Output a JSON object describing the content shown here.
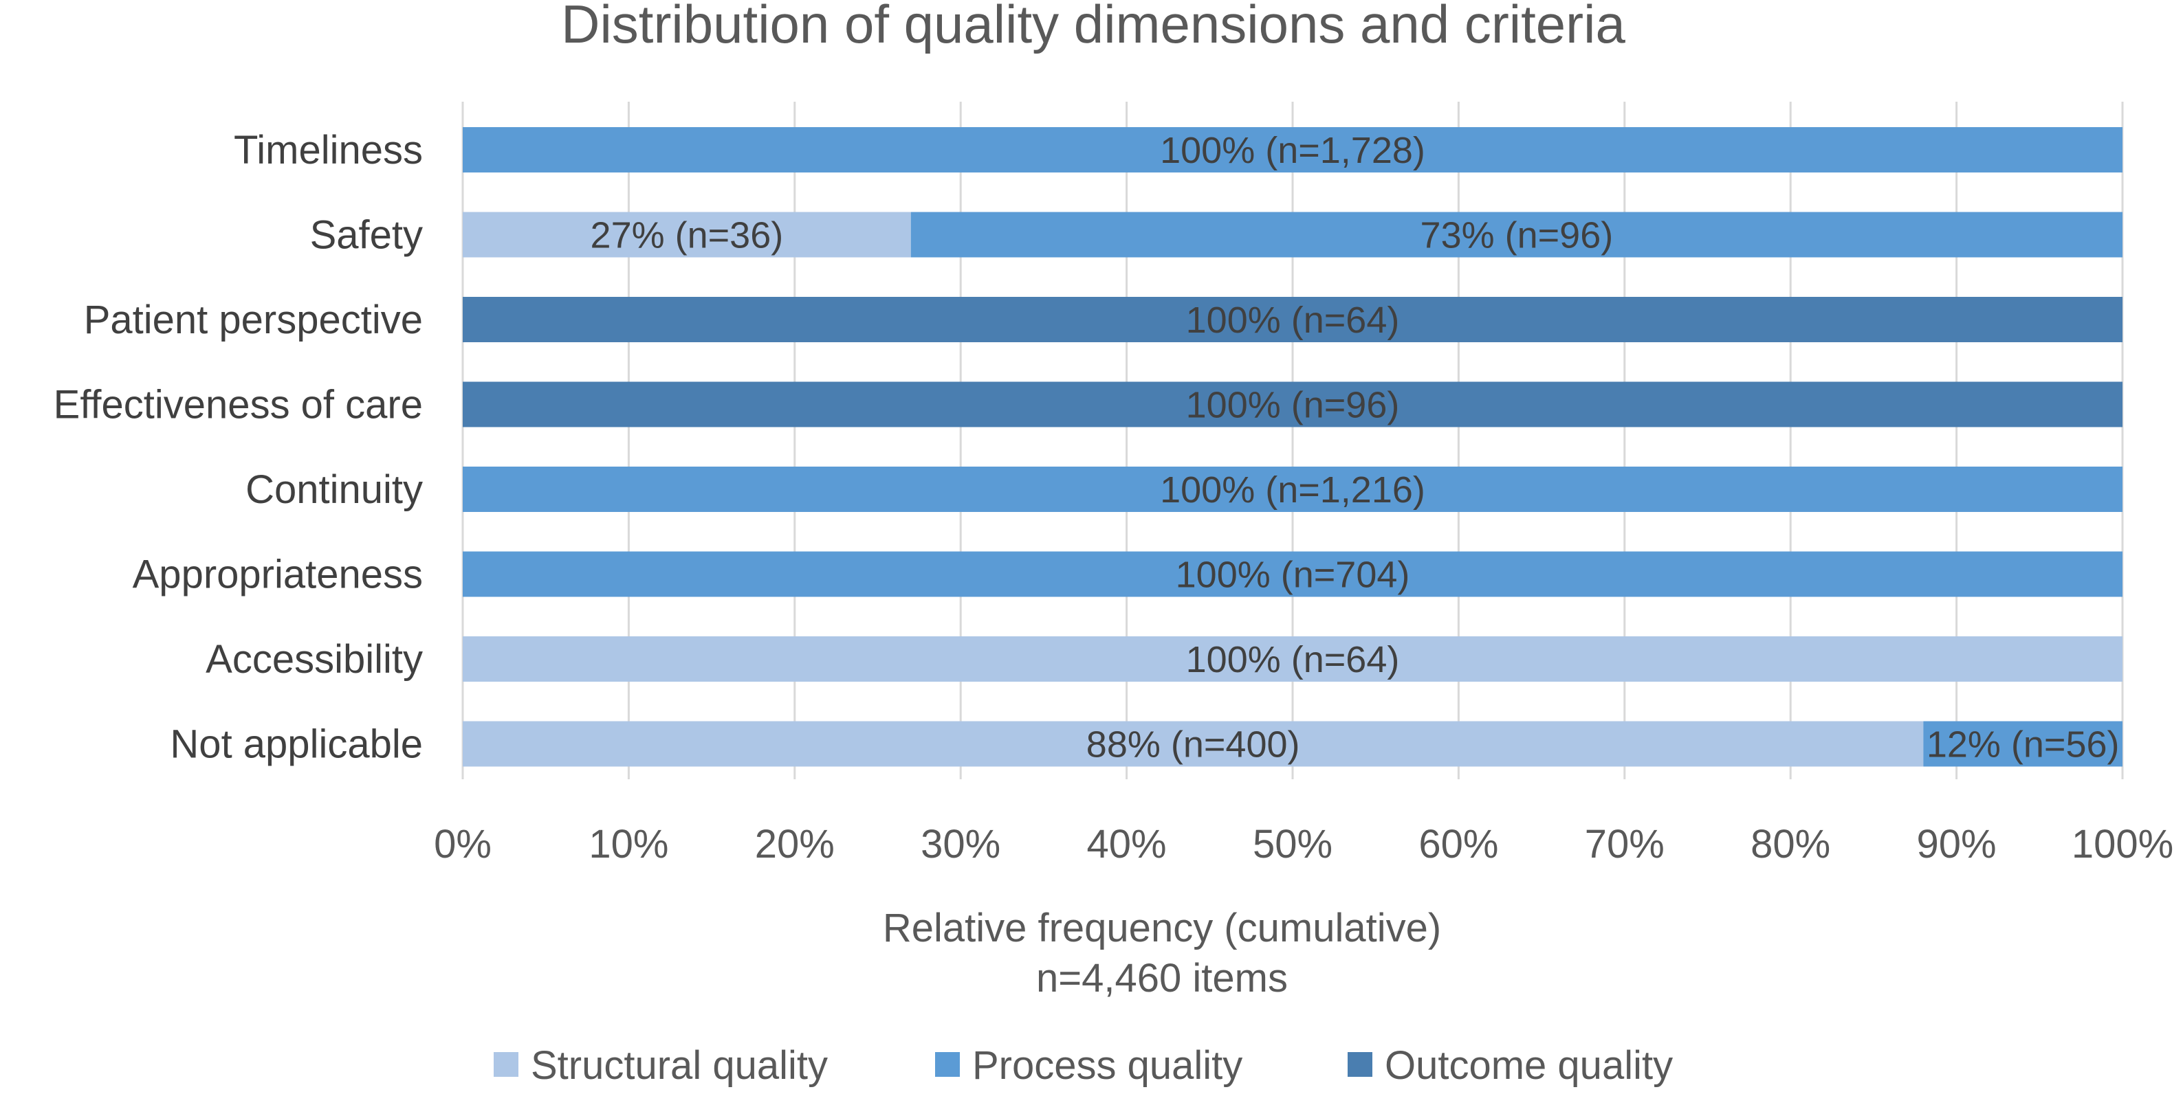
{
  "chart_data": {
    "type": "bar",
    "orientation": "horizontal",
    "stacked": "percent",
    "title": "Distribution of quality dimensions and criteria",
    "xlabel": "Relative frequency (cumulative)",
    "xlabel_sub": "n=4,460 items",
    "ylabel": "",
    "xlim": [
      0,
      100
    ],
    "x_ticks": [
      "0%",
      "10%",
      "20%",
      "30%",
      "40%",
      "50%",
      "60%",
      "70%",
      "80%",
      "90%",
      "100%"
    ],
    "grid": true,
    "legend_position": "bottom",
    "categories": [
      "Timeliness",
      "Safety",
      "Patient perspective",
      "Effectiveness of care",
      "Continuity",
      "Appropriateness",
      "Accessibility",
      "Not applicable"
    ],
    "series": [
      {
        "name": "Structural quality",
        "color": "#adc6e6",
        "values": [
          0,
          27,
          0,
          0,
          0,
          0,
          100,
          88
        ],
        "labels": [
          "",
          "27% (n=36)",
          "",
          "",
          "",
          "",
          "100% (n=64)",
          "88% (n=400)"
        ]
      },
      {
        "name": "Process quality",
        "color": "#5b9bd5",
        "values": [
          100,
          73,
          0,
          0,
          100,
          100,
          0,
          12
        ],
        "labels": [
          "100% (n=1,728)",
          "73% (n=96)",
          "",
          "",
          "100% (n=1,216)",
          "100% (n=704)",
          "",
          "12% (n=56)"
        ]
      },
      {
        "name": "Outcome quality",
        "color": "#4a7eb0",
        "values": [
          0,
          0,
          100,
          100,
          0,
          0,
          0,
          0
        ],
        "labels": [
          "",
          "",
          "100% (n=64)",
          "100% (n=96)",
          "",
          "",
          "",
          ""
        ]
      }
    ]
  }
}
